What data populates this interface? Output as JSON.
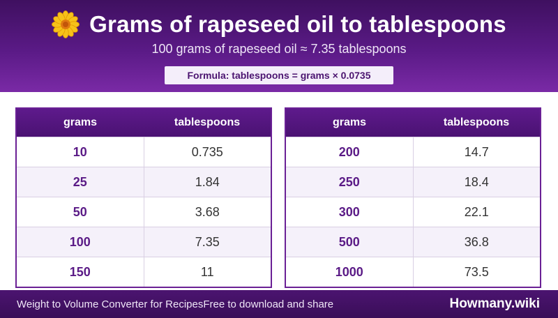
{
  "header": {
    "icon": "flower-icon",
    "title": "Grams of rapeseed oil to tablespoons",
    "subtitle": "100 grams of rapeseed oil ≈ 7.35 tablespoons",
    "formula": "Formula: tablespoons = grams × 0.0735"
  },
  "tables": {
    "columns": [
      "grams",
      "tablespoons"
    ],
    "left": [
      [
        "10",
        "0.735"
      ],
      [
        "25",
        "1.84"
      ],
      [
        "50",
        "3.68"
      ],
      [
        "100",
        "7.35"
      ],
      [
        "150",
        "11"
      ]
    ],
    "right": [
      [
        "200",
        "14.7"
      ],
      [
        "250",
        "18.4"
      ],
      [
        "300",
        "22.1"
      ],
      [
        "500",
        "36.8"
      ],
      [
        "1000",
        "73.5"
      ]
    ]
  },
  "footer": {
    "left": "Weight to Volume Converter for Recipes",
    "middle": "Free to download and share",
    "brand": "Howmany.wiki"
  },
  "colors": {
    "brand_purple": "#5a1a86",
    "accent_yellow": "#f5b800"
  }
}
